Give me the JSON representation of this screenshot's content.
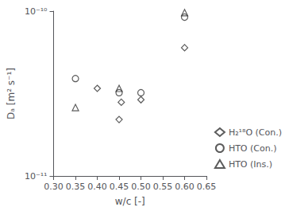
{
  "chart_data": {
    "type": "scatter",
    "xlabel": "w/c [-]",
    "ylabel": "Dₐ [m² s⁻¹]",
    "xlim": [
      0.3,
      0.65
    ],
    "ylim": [
      1e-11,
      1e-10
    ],
    "xticks": [
      {
        "value": 0.3,
        "label": "0.30"
      },
      {
        "value": 0.35,
        "label": "0.35"
      },
      {
        "value": 0.4,
        "label": "0.40"
      },
      {
        "value": 0.45,
        "label": "0.45"
      },
      {
        "value": 0.5,
        "label": "0.50"
      },
      {
        "value": 0.55,
        "label": "0.55"
      },
      {
        "value": 0.6,
        "label": "0.60"
      },
      {
        "value": 0.65,
        "label": "0.65"
      }
    ],
    "yticks": [
      {
        "value": 1e-11,
        "label": "10⁻¹¹"
      },
      {
        "value": 1e-10,
        "label": "10⁻¹⁰"
      }
    ],
    "log": "y",
    "grid": false,
    "legend": "lower right",
    "series": [
      {
        "name": "H₂¹⁸O (Con.)",
        "color": "#333333",
        "marker": "diamond",
        "x": [
          0.4,
          0.45,
          0.455,
          0.5,
          0.6
        ],
        "values": [
          3.4e-11,
          2.2e-11,
          2.8e-11,
          2.9e-11,
          6e-11
        ]
      },
      {
        "name": "HTO (Con.)",
        "color": "#333333",
        "marker": "circle",
        "x": [
          0.35,
          0.45,
          0.5,
          0.6
        ],
        "values": [
          3.9e-11,
          3.2e-11,
          3.2e-11,
          9.2e-11
        ]
      },
      {
        "name": "HTO (Ins.)",
        "color": "#333333",
        "marker": "triangle",
        "x": [
          0.35,
          0.45,
          0.6
        ],
        "values": [
          2.6e-11,
          3.4e-11,
          9.8e-11
        ]
      }
    ]
  }
}
